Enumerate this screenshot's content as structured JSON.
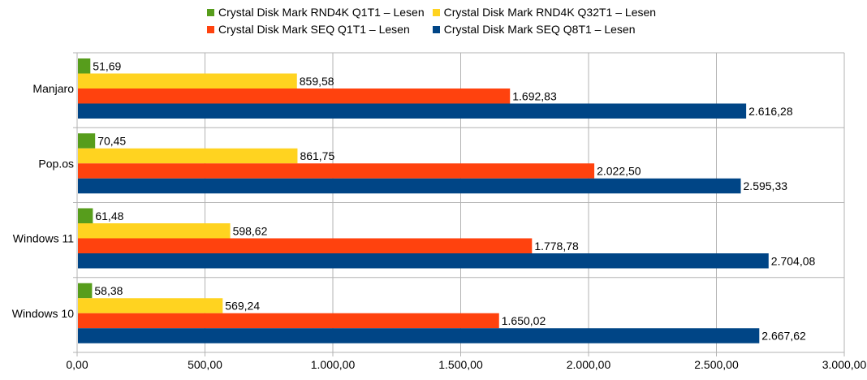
{
  "chart_data": {
    "type": "bar",
    "orientation": "horizontal",
    "categories": [
      "Manjaro",
      "Pop.os",
      "Windows 11",
      "Windows 10"
    ],
    "series": [
      {
        "name": "Crystal Disk Mark RND4K Q1T1 – Lesen",
        "color": "#579d1c",
        "values": [
          51.69,
          70.45,
          61.48,
          58.38
        ],
        "labels": [
          "51,69",
          "70,45",
          "61,48",
          "58,38"
        ]
      },
      {
        "name": "Crystal Disk Mark RND4K Q32T1 – Lesen",
        "color": "#ffd320",
        "values": [
          859.58,
          861.75,
          598.62,
          569.24
        ],
        "labels": [
          "859,58",
          "861,75",
          "598,62",
          "569,24"
        ]
      },
      {
        "name": "Crystal Disk Mark SEQ Q1T1 – Lesen",
        "color": "#ff420e",
        "values": [
          1692.83,
          2022.5,
          1778.78,
          1650.02
        ],
        "labels": [
          "1.692,83",
          "2.022,50",
          "1.778,78",
          "1.650,02"
        ]
      },
      {
        "name": "Crystal Disk Mark SEQ Q8T1 – Lesen",
        "color": "#004586",
        "values": [
          2616.28,
          2595.33,
          2704.08,
          2667.62
        ],
        "labels": [
          "2.616,28",
          "2.595,33",
          "2.704,08",
          "2.667,62"
        ]
      }
    ],
    "xlim": [
      0,
      3000
    ],
    "xticks": [
      0,
      500,
      1000,
      1500,
      2000,
      2500,
      3000
    ],
    "xtick_labels": [
      "0,00",
      "500,00",
      "1.000,00",
      "1.500,00",
      "2.000,00",
      "2.500,00",
      "3.000,00"
    ],
    "grid": true,
    "legend_position": "top",
    "title": "",
    "xlabel": "",
    "ylabel": ""
  }
}
